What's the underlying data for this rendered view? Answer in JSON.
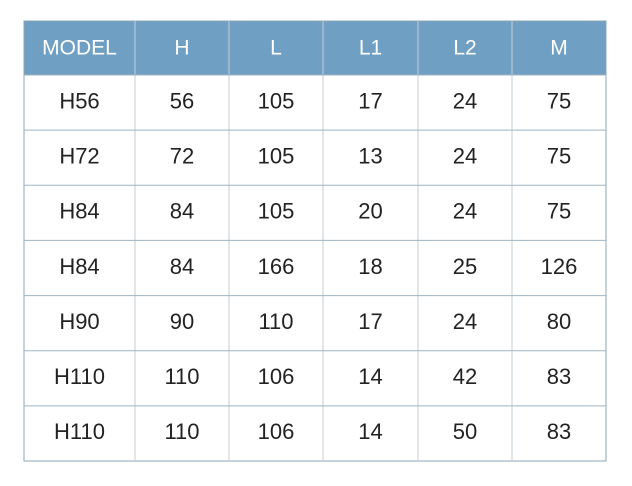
{
  "table": {
    "header": [
      "MODEL",
      "H",
      "L",
      "L1",
      "L2",
      "M"
    ],
    "rows": [
      [
        "H56",
        56,
        105,
        17,
        24,
        75
      ],
      [
        "H72",
        72,
        105,
        13,
        24,
        75
      ],
      [
        "H84",
        84,
        105,
        20,
        24,
        75
      ],
      [
        "H84",
        84,
        166,
        18,
        25,
        126
      ],
      [
        "H90",
        90,
        110,
        17,
        24,
        80
      ],
      [
        "H110",
        110,
        106,
        14,
        42,
        83
      ],
      [
        "H110",
        110,
        106,
        14,
        50,
        83
      ]
    ]
  }
}
